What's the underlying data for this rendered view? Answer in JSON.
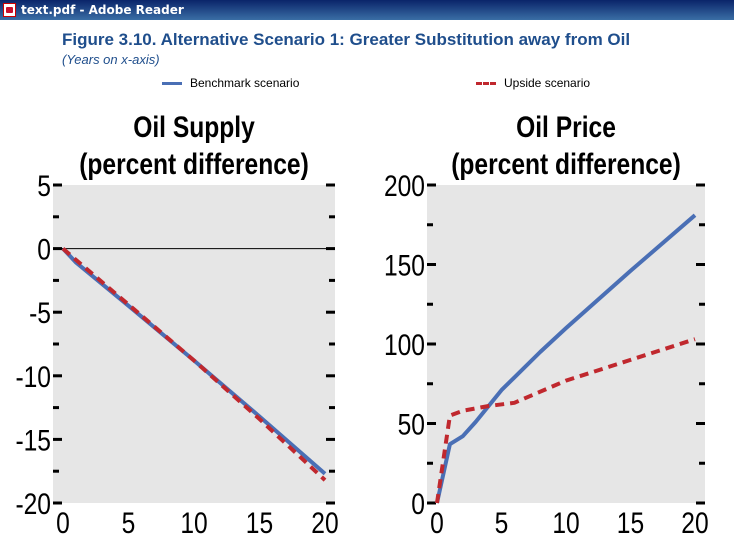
{
  "window": {
    "title": "text.pdf - Adobe Reader"
  },
  "figure": {
    "title": "Figure 3.10.  Alternative Scenario 1: Greater Substitution away from Oil",
    "subtitle": "(Years on x-axis)"
  },
  "legend": {
    "benchmark": "Benchmark scenario",
    "upside": "Upside scenario"
  },
  "colors": {
    "benchmark": "#4a6fb5",
    "upside": "#c0282e",
    "plot_bg": "#e6e6e6",
    "title": "#1f4e8c"
  },
  "chart_data": [
    {
      "type": "line",
      "title": "Oil Supply",
      "subtitle": "(percent difference)",
      "xlim": [
        0,
        20
      ],
      "ylim": [
        -20,
        5
      ],
      "xticks": [
        0,
        5,
        10,
        15,
        20
      ],
      "yticks": [
        5,
        0,
        -5,
        -10,
        -15,
        -20
      ],
      "grid": false,
      "zero_line": true,
      "series": [
        {
          "name": "Benchmark scenario",
          "style": "solid",
          "x": [
            0,
            1,
            5,
            10,
            15,
            20
          ],
          "y": [
            0,
            -1.1,
            -4.5,
            -8.8,
            -13.2,
            -17.7
          ]
        },
        {
          "name": "Upside scenario",
          "style": "dashed",
          "x": [
            0,
            1,
            5,
            10,
            15,
            20
          ],
          "y": [
            0,
            -0.9,
            -4.4,
            -8.8,
            -13.4,
            -18.2
          ]
        }
      ]
    },
    {
      "type": "line",
      "title": "Oil Price",
      "subtitle": "(percent difference)",
      "xlim": [
        0,
        20
      ],
      "ylim": [
        0,
        200
      ],
      "xticks": [
        0,
        5,
        10,
        15,
        20
      ],
      "yticks": [
        200,
        150,
        100,
        50,
        0
      ],
      "grid": false,
      "zero_line": false,
      "series": [
        {
          "name": "Benchmark scenario",
          "style": "solid",
          "x": [
            0,
            1,
            2,
            3,
            4,
            5,
            6,
            8,
            10,
            15,
            20
          ],
          "y": [
            0,
            37,
            42,
            51,
            61,
            71,
            79,
            95,
            110,
            146,
            181
          ]
        },
        {
          "name": "Upside scenario",
          "style": "dashed",
          "x": [
            0,
            1,
            2,
            4,
            6,
            8,
            10,
            15,
            20
          ],
          "y": [
            0,
            55,
            58,
            61,
            63,
            70,
            77,
            90,
            103
          ]
        }
      ]
    }
  ]
}
